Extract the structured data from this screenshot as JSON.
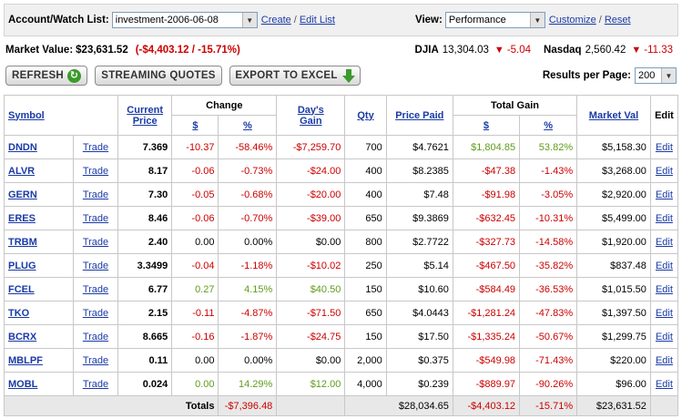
{
  "account": {
    "label": "Account/Watch List:",
    "selected": "investment-2006-06-08",
    "create": "Create",
    "sep": "/",
    "edit_list": "Edit List"
  },
  "view": {
    "label": "View:",
    "selected": "Performance",
    "customize": "Customize",
    "sep": "/",
    "reset": "Reset"
  },
  "market": {
    "label": "Market Value:",
    "value": "$23,631.52",
    "change": "(-$4,403.12 / -15.71%)",
    "djia_label": "DJIA",
    "djia_value": "13,304.03",
    "djia_change": "-5.04",
    "nasdaq_label": "Nasdaq",
    "nasdaq_value": "2,560.42",
    "nasdaq_change": "-11.33"
  },
  "toolbar": {
    "refresh": "REFRESH",
    "streaming": "STREAMING QUOTES",
    "export": "EXPORT TO EXCEL",
    "results_label": "Results per Page:",
    "results_value": "200"
  },
  "table": {
    "headers": {
      "symbol": "Symbol",
      "current_price_1": "Current",
      "current_price_2": "Price",
      "change": "Change",
      "change_dollar": "$",
      "change_pct": "%",
      "days_gain_1": "Day's",
      "days_gain_2": "Gain",
      "qty": "Qty",
      "price_paid": "Price Paid",
      "total_gain": "Total Gain",
      "tg_dollar": "$",
      "tg_pct": "%",
      "market_val": "Market Val",
      "edit": "Edit"
    },
    "rows": [
      {
        "symbol": "DNDN",
        "trade": "Trade",
        "price": "7.369",
        "chg": "-10.37",
        "chg_pct": "-58.46%",
        "day_gain": "-$7,259.70",
        "qty": "700",
        "paid": "$4.7621",
        "tg": "$1,804.85",
        "tg_pct": "53.82%",
        "mval": "$5,158.30",
        "edit": "Edit",
        "chg_sign": "neg",
        "tg_sign": "pos"
      },
      {
        "symbol": "ALVR",
        "trade": "Trade",
        "price": "8.17",
        "chg": "-0.06",
        "chg_pct": "-0.73%",
        "day_gain": "-$24.00",
        "qty": "400",
        "paid": "$8.2385",
        "tg": "-$47.38",
        "tg_pct": "-1.43%",
        "mval": "$3,268.00",
        "edit": "Edit",
        "chg_sign": "neg",
        "tg_sign": "neg"
      },
      {
        "symbol": "GERN",
        "trade": "Trade",
        "price": "7.30",
        "chg": "-0.05",
        "chg_pct": "-0.68%",
        "day_gain": "-$20.00",
        "qty": "400",
        "paid": "$7.48",
        "tg": "-$91.98",
        "tg_pct": "-3.05%",
        "mval": "$2,920.00",
        "edit": "Edit",
        "chg_sign": "neg",
        "tg_sign": "neg"
      },
      {
        "symbol": "ERES",
        "trade": "Trade",
        "price": "8.46",
        "chg": "-0.06",
        "chg_pct": "-0.70%",
        "day_gain": "-$39.00",
        "qty": "650",
        "paid": "$9.3869",
        "tg": "-$632.45",
        "tg_pct": "-10.31%",
        "mval": "$5,499.00",
        "edit": "Edit",
        "chg_sign": "neg",
        "tg_sign": "neg"
      },
      {
        "symbol": "TRBM",
        "trade": "Trade",
        "price": "2.40",
        "chg": "0.00",
        "chg_pct": "0.00%",
        "day_gain": "$0.00",
        "qty": "800",
        "paid": "$2.7722",
        "tg": "-$327.73",
        "tg_pct": "-14.58%",
        "mval": "$1,920.00",
        "edit": "Edit",
        "chg_sign": "zero",
        "tg_sign": "neg"
      },
      {
        "symbol": "PLUG",
        "trade": "Trade",
        "price": "3.3499",
        "chg": "-0.04",
        "chg_pct": "-1.18%",
        "day_gain": "-$10.02",
        "qty": "250",
        "paid": "$5.14",
        "tg": "-$467.50",
        "tg_pct": "-35.82%",
        "mval": "$837.48",
        "edit": "Edit",
        "chg_sign": "neg",
        "tg_sign": "neg"
      },
      {
        "symbol": "FCEL",
        "trade": "Trade",
        "price": "6.77",
        "chg": "0.27",
        "chg_pct": "4.15%",
        "day_gain": "$40.50",
        "qty": "150",
        "paid": "$10.60",
        "tg": "-$584.49",
        "tg_pct": "-36.53%",
        "mval": "$1,015.50",
        "edit": "Edit",
        "chg_sign": "pos",
        "tg_sign": "neg"
      },
      {
        "symbol": "TKO",
        "trade": "Trade",
        "price": "2.15",
        "chg": "-0.11",
        "chg_pct": "-4.87%",
        "day_gain": "-$71.50",
        "qty": "650",
        "paid": "$4.0443",
        "tg": "-$1,281.24",
        "tg_pct": "-47.83%",
        "mval": "$1,397.50",
        "edit": "Edit",
        "chg_sign": "neg",
        "tg_sign": "neg"
      },
      {
        "symbol": "BCRX",
        "trade": "Trade",
        "price": "8.665",
        "chg": "-0.16",
        "chg_pct": "-1.87%",
        "day_gain": "-$24.75",
        "qty": "150",
        "paid": "$17.50",
        "tg": "-$1,335.24",
        "tg_pct": "-50.67%",
        "mval": "$1,299.75",
        "edit": "Edit",
        "chg_sign": "neg",
        "tg_sign": "neg"
      },
      {
        "symbol": "MBLPF",
        "trade": "Trade",
        "price": "0.11",
        "chg": "0.00",
        "chg_pct": "0.00%",
        "day_gain": "$0.00",
        "qty": "2,000",
        "paid": "$0.375",
        "tg": "-$549.98",
        "tg_pct": "-71.43%",
        "mval": "$220.00",
        "edit": "Edit",
        "chg_sign": "zero",
        "tg_sign": "neg"
      },
      {
        "symbol": "MOBL",
        "trade": "Trade",
        "price": "0.024",
        "chg": "0.00",
        "chg_pct": "14.29%",
        "day_gain": "$12.00",
        "qty": "4,000",
        "paid": "$0.239",
        "tg": "-$889.97",
        "tg_pct": "-90.26%",
        "mval": "$96.00",
        "edit": "Edit",
        "chg_sign": "pos",
        "tg_sign": "neg"
      }
    ],
    "totals": {
      "label": "Totals",
      "day_gain": "-$7,396.48",
      "paid": "$28,034.65",
      "tg": "-$4,403.12",
      "tg_pct": "-15.71%",
      "mval": "$23,631.52"
    }
  },
  "colors": {
    "negative": "#cc0000",
    "positive": "#5f9c1a",
    "link": "#1a3aa6"
  }
}
